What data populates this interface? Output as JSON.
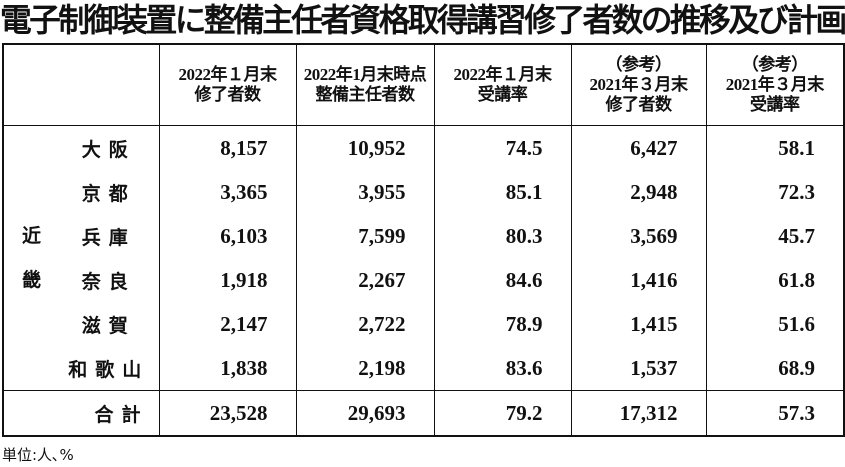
{
  "title": "電子制御装置に整備主任者資格取得講習修了者数の推移及び計画",
  "headers": [
    [
      "2022年１月末",
      "修了者数"
    ],
    [
      "2022年1月末時点",
      "整備主任者数"
    ],
    [
      "2022年１月末",
      "受講率"
    ],
    [
      "（参考）",
      "2021年３月末",
      "修了者数"
    ],
    [
      "（参考）",
      "2021年３月末",
      "受講率"
    ]
  ],
  "region": [
    "近",
    "畿"
  ],
  "rows": [
    {
      "pref": "大阪",
      "values": [
        "8,157",
        "10,952",
        "74.5",
        "6,427",
        "58.1"
      ]
    },
    {
      "pref": "京都",
      "values": [
        "3,365",
        "3,955",
        "85.1",
        "2,948",
        "72.3"
      ]
    },
    {
      "pref": "兵庫",
      "values": [
        "6,103",
        "7,599",
        "80.3",
        "3,569",
        "45.7"
      ]
    },
    {
      "pref": "奈良",
      "values": [
        "1,918",
        "2,267",
        "84.6",
        "1,416",
        "61.8"
      ]
    },
    {
      "pref": "滋賀",
      "values": [
        "2,147",
        "2,722",
        "78.9",
        "1,415",
        "51.6"
      ]
    },
    {
      "pref": "和歌山",
      "values": [
        "1,838",
        "2,198",
        "83.6",
        "1,537",
        "68.9"
      ]
    }
  ],
  "total": {
    "pref": "合計",
    "values": [
      "23,528",
      "29,693",
      "79.2",
      "17,312",
      "57.3"
    ]
  },
  "unit": "単位:人､%"
}
